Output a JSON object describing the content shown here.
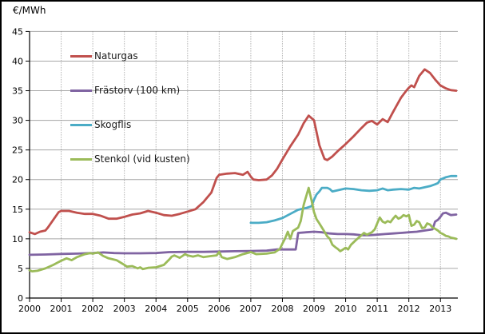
{
  "chart_data": {
    "type": "line",
    "unit_label": "€/MWh",
    "title": "",
    "xlabel": "",
    "ylabel": "€/MWh",
    "xlim": [
      2000,
      2013.55
    ],
    "ylim": [
      0,
      45
    ],
    "x_ticks": [
      2000,
      2001,
      2002,
      2003,
      2004,
      2005,
      2006,
      2007,
      2008,
      2009,
      2010,
      2011,
      2012,
      2013
    ],
    "y_ticks": [
      0,
      5,
      10,
      15,
      20,
      25,
      30,
      35,
      40,
      45
    ],
    "grid": {
      "horizontal": "solid-gray",
      "vertical": "dotted-gray"
    },
    "legend_position": "inside-top-left",
    "axis_color": "#000000",
    "gridline_color": "#a6a6a6",
    "series": [
      {
        "name": "Naturgas",
        "color": "#C0504D",
        "points": [
          [
            2000.0,
            11.1
          ],
          [
            2000.17,
            10.8
          ],
          [
            2000.33,
            11.2
          ],
          [
            2000.5,
            11.4
          ],
          [
            2000.58,
            11.9
          ],
          [
            2000.75,
            13.2
          ],
          [
            2000.92,
            14.5
          ],
          [
            2001.0,
            14.7
          ],
          [
            2001.25,
            14.7
          ],
          [
            2001.5,
            14.4
          ],
          [
            2001.75,
            14.2
          ],
          [
            2002.0,
            14.2
          ],
          [
            2002.25,
            13.9
          ],
          [
            2002.5,
            13.4
          ],
          [
            2002.75,
            13.4
          ],
          [
            2003.0,
            13.7
          ],
          [
            2003.25,
            14.1
          ],
          [
            2003.5,
            14.3
          ],
          [
            2003.75,
            14.7
          ],
          [
            2004.0,
            14.4
          ],
          [
            2004.25,
            14.0
          ],
          [
            2004.5,
            13.9
          ],
          [
            2004.75,
            14.2
          ],
          [
            2005.0,
            14.6
          ],
          [
            2005.25,
            15.0
          ],
          [
            2005.5,
            16.2
          ],
          [
            2005.75,
            17.8
          ],
          [
            2005.92,
            20.3
          ],
          [
            2006.0,
            20.8
          ],
          [
            2006.25,
            21.0
          ],
          [
            2006.5,
            21.1
          ],
          [
            2006.75,
            20.8
          ],
          [
            2006.9,
            21.3
          ],
          [
            2007.0,
            20.5
          ],
          [
            2007.08,
            20.0
          ],
          [
            2007.25,
            19.9
          ],
          [
            2007.5,
            20.0
          ],
          [
            2007.67,
            20.7
          ],
          [
            2007.83,
            21.8
          ],
          [
            2008.0,
            23.4
          ],
          [
            2008.25,
            25.6
          ],
          [
            2008.5,
            27.6
          ],
          [
            2008.67,
            29.5
          ],
          [
            2008.83,
            30.8
          ],
          [
            2009.0,
            30.0
          ],
          [
            2009.17,
            25.8
          ],
          [
            2009.33,
            23.5
          ],
          [
            2009.42,
            23.3
          ],
          [
            2009.58,
            23.9
          ],
          [
            2009.75,
            24.8
          ],
          [
            2010.0,
            26.0
          ],
          [
            2010.25,
            27.3
          ],
          [
            2010.5,
            28.7
          ],
          [
            2010.67,
            29.6
          ],
          [
            2010.83,
            29.9
          ],
          [
            2011.0,
            29.3
          ],
          [
            2011.17,
            30.2
          ],
          [
            2011.33,
            29.7
          ],
          [
            2011.5,
            31.4
          ],
          [
            2011.75,
            33.8
          ],
          [
            2011.92,
            35.0
          ],
          [
            2012.0,
            35.5
          ],
          [
            2012.08,
            35.9
          ],
          [
            2012.17,
            35.6
          ],
          [
            2012.33,
            37.5
          ],
          [
            2012.5,
            38.6
          ],
          [
            2012.67,
            38.0
          ],
          [
            2012.83,
            36.9
          ],
          [
            2013.0,
            35.9
          ],
          [
            2013.17,
            35.4
          ],
          [
            2013.33,
            35.1
          ],
          [
            2013.5,
            35.0
          ]
        ]
      },
      {
        "name": "Frästorv (100 km)",
        "color": "#8064A2",
        "points": [
          [
            2000.0,
            7.3
          ],
          [
            2000.5,
            7.35
          ],
          [
            2001.0,
            7.45
          ],
          [
            2001.5,
            7.5
          ],
          [
            2002.0,
            7.6
          ],
          [
            2002.33,
            7.7
          ],
          [
            2002.67,
            7.6
          ],
          [
            2003.0,
            7.55
          ],
          [
            2003.5,
            7.55
          ],
          [
            2004.0,
            7.6
          ],
          [
            2004.42,
            7.75
          ],
          [
            2005.0,
            7.8
          ],
          [
            2005.5,
            7.8
          ],
          [
            2006.0,
            7.85
          ],
          [
            2006.5,
            7.9
          ],
          [
            2007.0,
            7.95
          ],
          [
            2007.5,
            8.0
          ],
          [
            2007.83,
            8.2
          ],
          [
            2008.0,
            8.2
          ],
          [
            2008.42,
            8.2
          ],
          [
            2008.5,
            11.0
          ],
          [
            2008.75,
            11.1
          ],
          [
            2009.0,
            11.2
          ],
          [
            2009.25,
            11.1
          ],
          [
            2009.5,
            10.9
          ],
          [
            2009.75,
            10.8
          ],
          [
            2010.0,
            10.8
          ],
          [
            2010.25,
            10.75
          ],
          [
            2010.5,
            10.6
          ],
          [
            2010.75,
            10.6
          ],
          [
            2011.0,
            10.7
          ],
          [
            2011.25,
            10.8
          ],
          [
            2011.5,
            10.9
          ],
          [
            2011.75,
            11.0
          ],
          [
            2012.0,
            11.1
          ],
          [
            2012.25,
            11.2
          ],
          [
            2012.5,
            11.4
          ],
          [
            2012.75,
            11.6
          ],
          [
            2012.83,
            12.9
          ],
          [
            2012.92,
            13.2
          ],
          [
            2013.0,
            13.7
          ],
          [
            2013.08,
            14.3
          ],
          [
            2013.17,
            14.4
          ],
          [
            2013.33,
            14.0
          ],
          [
            2013.5,
            14.1
          ]
        ]
      },
      {
        "name": "Skogflis",
        "color": "#4BACC6",
        "points": [
          [
            2007.0,
            12.7
          ],
          [
            2007.25,
            12.7
          ],
          [
            2007.5,
            12.8
          ],
          [
            2007.75,
            13.1
          ],
          [
            2008.0,
            13.5
          ],
          [
            2008.25,
            14.2
          ],
          [
            2008.5,
            14.9
          ],
          [
            2008.75,
            15.2
          ],
          [
            2008.92,
            15.5
          ],
          [
            2009.0,
            16.6
          ],
          [
            2009.08,
            17.5
          ],
          [
            2009.17,
            18.0
          ],
          [
            2009.25,
            18.6
          ],
          [
            2009.42,
            18.6
          ],
          [
            2009.5,
            18.4
          ],
          [
            2009.58,
            18.0
          ],
          [
            2009.75,
            18.2
          ],
          [
            2010.0,
            18.5
          ],
          [
            2010.25,
            18.4
          ],
          [
            2010.5,
            18.2
          ],
          [
            2010.75,
            18.1
          ],
          [
            2011.0,
            18.2
          ],
          [
            2011.17,
            18.5
          ],
          [
            2011.33,
            18.2
          ],
          [
            2011.5,
            18.3
          ],
          [
            2011.75,
            18.4
          ],
          [
            2012.0,
            18.3
          ],
          [
            2012.17,
            18.6
          ],
          [
            2012.33,
            18.5
          ],
          [
            2012.5,
            18.7
          ],
          [
            2012.67,
            18.9
          ],
          [
            2012.83,
            19.2
          ],
          [
            2012.92,
            19.4
          ],
          [
            2013.0,
            20.0
          ],
          [
            2013.17,
            20.4
          ],
          [
            2013.33,
            20.6
          ],
          [
            2013.5,
            20.6
          ]
        ]
      },
      {
        "name": "Stenkol (vid kusten)",
        "color": "#9BBB59",
        "points": [
          [
            2000.0,
            4.7
          ],
          [
            2000.08,
            4.5
          ],
          [
            2000.25,
            4.6
          ],
          [
            2000.5,
            5.0
          ],
          [
            2000.75,
            5.6
          ],
          [
            2001.0,
            6.3
          ],
          [
            2001.17,
            6.7
          ],
          [
            2001.33,
            6.4
          ],
          [
            2001.5,
            6.9
          ],
          [
            2001.75,
            7.4
          ],
          [
            2001.92,
            7.6
          ],
          [
            2002.0,
            7.5
          ],
          [
            2002.17,
            7.7
          ],
          [
            2002.33,
            7.1
          ],
          [
            2002.5,
            6.7
          ],
          [
            2002.75,
            6.4
          ],
          [
            2003.0,
            5.6
          ],
          [
            2003.08,
            5.3
          ],
          [
            2003.25,
            5.4
          ],
          [
            2003.42,
            5.0
          ],
          [
            2003.5,
            5.2
          ],
          [
            2003.58,
            4.9
          ],
          [
            2003.75,
            5.1
          ],
          [
            2004.0,
            5.2
          ],
          [
            2004.25,
            5.6
          ],
          [
            2004.42,
            6.5
          ],
          [
            2004.5,
            7.0
          ],
          [
            2004.58,
            7.2
          ],
          [
            2004.75,
            6.8
          ],
          [
            2004.92,
            7.4
          ],
          [
            2005.0,
            7.2
          ],
          [
            2005.17,
            7.0
          ],
          [
            2005.33,
            7.2
          ],
          [
            2005.5,
            6.9
          ],
          [
            2005.75,
            7.1
          ],
          [
            2005.92,
            7.2
          ],
          [
            2006.0,
            7.8
          ],
          [
            2006.08,
            6.9
          ],
          [
            2006.25,
            6.6
          ],
          [
            2006.5,
            6.9
          ],
          [
            2006.75,
            7.4
          ],
          [
            2007.0,
            7.75
          ],
          [
            2007.17,
            7.4
          ],
          [
            2007.5,
            7.5
          ],
          [
            2007.75,
            7.7
          ],
          [
            2007.92,
            8.3
          ],
          [
            2008.0,
            9.2
          ],
          [
            2008.08,
            10.0
          ],
          [
            2008.17,
            11.2
          ],
          [
            2008.25,
            10.0
          ],
          [
            2008.33,
            11.3
          ],
          [
            2008.5,
            11.9
          ],
          [
            2008.58,
            13.0
          ],
          [
            2008.67,
            15.7
          ],
          [
            2008.83,
            18.6
          ],
          [
            2008.92,
            16.5
          ],
          [
            2009.0,
            14.5
          ],
          [
            2009.08,
            13.3
          ],
          [
            2009.17,
            12.6
          ],
          [
            2009.33,
            11.2
          ],
          [
            2009.42,
            10.4
          ],
          [
            2009.5,
            10.0
          ],
          [
            2009.58,
            9.0
          ],
          [
            2009.67,
            8.6
          ],
          [
            2009.75,
            8.3
          ],
          [
            2009.83,
            7.9
          ],
          [
            2009.92,
            8.2
          ],
          [
            2010.0,
            8.5
          ],
          [
            2010.08,
            8.2
          ],
          [
            2010.17,
            9.0
          ],
          [
            2010.33,
            9.8
          ],
          [
            2010.5,
            10.6
          ],
          [
            2010.58,
            11.0
          ],
          [
            2010.67,
            10.7
          ],
          [
            2010.75,
            10.9
          ],
          [
            2010.83,
            11.1
          ],
          [
            2010.92,
            11.6
          ],
          [
            2011.0,
            12.6
          ],
          [
            2011.08,
            13.6
          ],
          [
            2011.17,
            12.9
          ],
          [
            2011.25,
            12.7
          ],
          [
            2011.33,
            13.0
          ],
          [
            2011.42,
            12.8
          ],
          [
            2011.5,
            13.4
          ],
          [
            2011.58,
            13.9
          ],
          [
            2011.67,
            13.4
          ],
          [
            2011.75,
            13.6
          ],
          [
            2011.83,
            14.0
          ],
          [
            2011.92,
            13.8
          ],
          [
            2012.0,
            14.0
          ],
          [
            2012.08,
            12.2
          ],
          [
            2012.17,
            12.4
          ],
          [
            2012.25,
            13.0
          ],
          [
            2012.33,
            12.8
          ],
          [
            2012.42,
            11.8
          ],
          [
            2012.5,
            11.9
          ],
          [
            2012.58,
            12.6
          ],
          [
            2012.67,
            12.4
          ],
          [
            2012.75,
            11.9
          ],
          [
            2012.83,
            11.7
          ],
          [
            2012.92,
            11.4
          ],
          [
            2013.0,
            11.0
          ],
          [
            2013.08,
            10.8
          ],
          [
            2013.17,
            10.5
          ],
          [
            2013.25,
            10.4
          ],
          [
            2013.33,
            10.2
          ],
          [
            2013.42,
            10.1
          ],
          [
            2013.5,
            10.0
          ]
        ]
      }
    ]
  }
}
